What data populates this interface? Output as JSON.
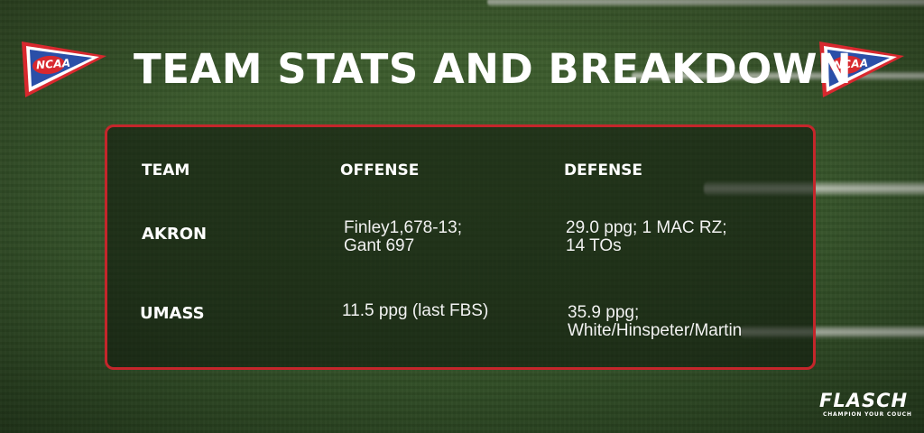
{
  "title": "TEAM STATS AND BREAKDOWN",
  "logos": {
    "pennant_text": "NCAA",
    "pennant_colors": {
      "blue": "#2a4fa8",
      "red": "#d8282e",
      "white": "#ffffff"
    }
  },
  "table": {
    "headers": [
      "TEAM",
      "OFFENSE",
      "DEFENSE"
    ],
    "rows": [
      {
        "team": "AKRON",
        "offense": [
          "Finley1,678-13;",
          "Gant 697"
        ],
        "defense": [
          "29.0 ppg; 1 MAC RZ;",
          "14 TOs"
        ]
      },
      {
        "team": "UMASS",
        "offense": [
          "11.5 ppg (last FBS)"
        ],
        "defense": [
          "35.9 ppg;",
          "White/Hinspeter/Martin"
        ]
      }
    ]
  },
  "colors": {
    "panel_border": "#c4262b",
    "field_green": "#36542a",
    "text": "#ffffff"
  },
  "brand": {
    "name": "FLASCH",
    "tagline": "CHAMPION YOUR COUCH"
  }
}
